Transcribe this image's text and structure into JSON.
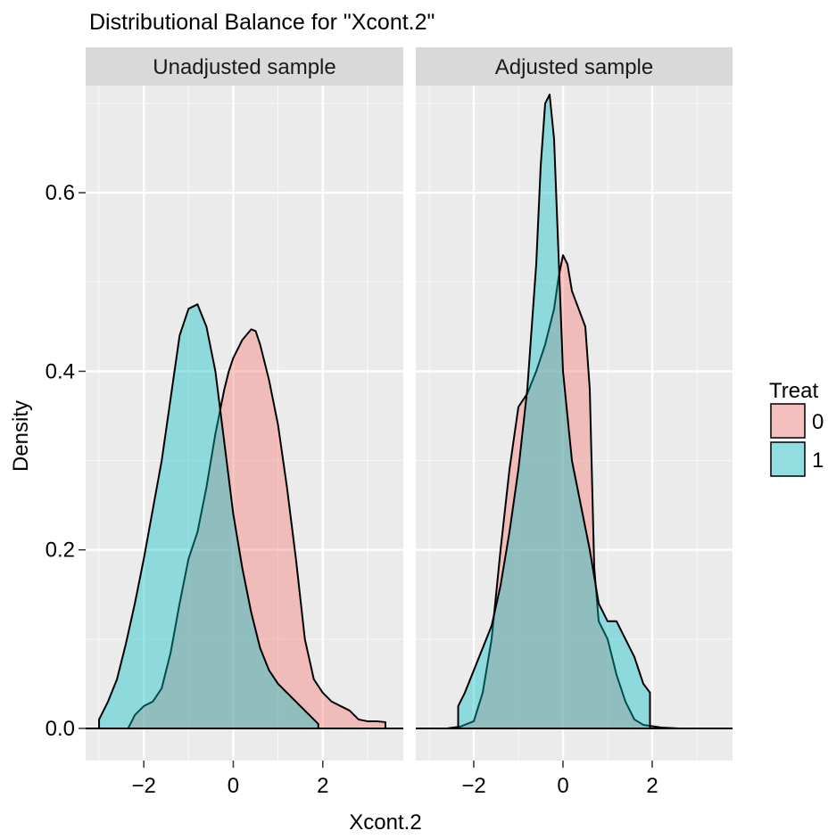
{
  "chart_data": {
    "type": "area",
    "title": "Distributional Balance for \"Xcont.2\"",
    "xlabel": "Xcont.2",
    "ylabel": "Density",
    "ylim": [
      -0.036,
      0.72
    ],
    "y_ticks": [
      0.0,
      0.2,
      0.4,
      0.6
    ],
    "y_tick_labels": [
      "0.0",
      "0.2",
      "0.4",
      "0.6"
    ],
    "xlim": [
      -3.3,
      3.8
    ],
    "x_ticks": [
      -2,
      0,
      2
    ],
    "x_tick_labels": [
      "−2",
      "0",
      "2"
    ],
    "grid": true,
    "legend": {
      "title": "Treat",
      "position": "right",
      "entries": [
        {
          "label": "0",
          "color": "#f8766d"
        },
        {
          "label": "1",
          "color": "#00bfc4"
        }
      ]
    },
    "panels": [
      {
        "title": "Unadjusted sample",
        "series": [
          {
            "name": "0",
            "color": "#f8766d",
            "x": [
              -2.35,
              -2.2,
              -2.0,
              -1.8,
              -1.6,
              -1.4,
              -1.2,
              -1.0,
              -0.8,
              -0.6,
              -0.4,
              -0.2,
              -0.1,
              0.0,
              0.2,
              0.4,
              0.5,
              0.6,
              0.8,
              1.0,
              1.2,
              1.4,
              1.6,
              1.8,
              2.0,
              2.2,
              2.4,
              2.6,
              2.8,
              3.0,
              3.2,
              3.4
            ],
            "y": [
              0.0,
              0.015,
              0.025,
              0.03,
              0.045,
              0.085,
              0.14,
              0.19,
              0.22,
              0.27,
              0.33,
              0.38,
              0.4,
              0.415,
              0.435,
              0.447,
              0.445,
              0.43,
              0.39,
              0.34,
              0.27,
              0.19,
              0.1,
              0.055,
              0.04,
              0.03,
              0.025,
              0.02,
              0.01,
              0.008,
              0.008,
              0.007
            ]
          },
          {
            "name": "1",
            "color": "#00bfc4",
            "x": [
              -3.0,
              -2.8,
              -2.6,
              -2.4,
              -2.2,
              -2.0,
              -1.8,
              -1.6,
              -1.4,
              -1.2,
              -1.0,
              -0.8,
              -0.6,
              -0.4,
              -0.2,
              0.0,
              0.2,
              0.4,
              0.6,
              0.8,
              1.0,
              1.2,
              1.4,
              1.6,
              1.8,
              1.9
            ],
            "y": [
              0.01,
              0.03,
              0.055,
              0.095,
              0.14,
              0.19,
              0.245,
              0.3,
              0.37,
              0.44,
              0.47,
              0.475,
              0.45,
              0.4,
              0.32,
              0.24,
              0.18,
              0.13,
              0.09,
              0.065,
              0.05,
              0.04,
              0.03,
              0.02,
              0.01,
              0.005
            ]
          }
        ]
      },
      {
        "title": "Adjusted sample",
        "series": [
          {
            "name": "0",
            "color": "#f8766d",
            "x": [
              -3.0,
              -2.6,
              -2.3,
              -2.0,
              -1.8,
              -1.6,
              -1.4,
              -1.2,
              -1.0,
              -0.8,
              -0.6,
              -0.4,
              -0.2,
              -0.1,
              0.0,
              0.1,
              0.2,
              0.35,
              0.5,
              0.6,
              0.7,
              0.8,
              1.0,
              1.2,
              1.4,
              1.6,
              1.8,
              2.2,
              2.6,
              3.0,
              3.4
            ],
            "y": [
              0.0,
              0.0,
              0.002,
              0.008,
              0.04,
              0.1,
              0.2,
              0.29,
              0.36,
              0.375,
              0.4,
              0.43,
              0.47,
              0.505,
              0.53,
              0.52,
              0.49,
              0.47,
              0.45,
              0.38,
              0.18,
              0.12,
              0.1,
              0.06,
              0.03,
              0.01,
              0.004,
              0.001,
              0.0,
              0.0,
              0.0
            ]
          },
          {
            "name": "1",
            "color": "#00bfc4",
            "x": [
              -2.35,
              -2.2,
              -2.0,
              -1.8,
              -1.6,
              -1.4,
              -1.2,
              -1.0,
              -0.8,
              -0.6,
              -0.5,
              -0.4,
              -0.3,
              -0.2,
              -0.1,
              0.0,
              0.2,
              0.4,
              0.6,
              0.8,
              1.0,
              1.2,
              1.4,
              1.6,
              1.8,
              1.95
            ],
            "y": [
              0.025,
              0.04,
              0.065,
              0.09,
              0.115,
              0.16,
              0.22,
              0.29,
              0.38,
              0.52,
              0.63,
              0.7,
              0.71,
              0.66,
              0.53,
              0.4,
              0.3,
              0.25,
              0.2,
              0.14,
              0.12,
              0.12,
              0.1,
              0.08,
              0.05,
              0.04
            ]
          }
        ]
      }
    ]
  }
}
